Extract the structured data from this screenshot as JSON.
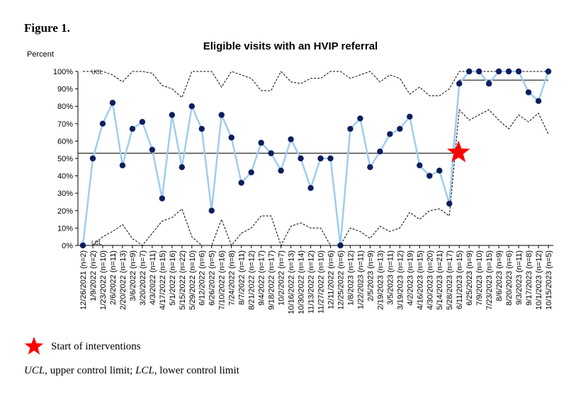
{
  "figure_label": "Figure 1.",
  "legend": {
    "star_label": "Start of interventions"
  },
  "footnote": {
    "ucl_abbr": "UCL,",
    "ucl_text": " upper control limit; ",
    "lcl_abbr": "LCL,",
    "lcl_text": " lower control limit"
  },
  "colors": {
    "line": "#9fcdf2",
    "point": "#0d1e5c",
    "star": "#ff0000",
    "limit": "#000000"
  },
  "chart_data": {
    "type": "line",
    "title": "Eligible visits with an HVIP referral",
    "ylabel": "Percent",
    "ylim": [
      0,
      100
    ],
    "yticks": [
      "0%",
      "10%",
      "20%",
      "30%",
      "40%",
      "50%",
      "60%",
      "70%",
      "80%",
      "90%",
      "100%"
    ],
    "grid": false,
    "categories": [
      "12/26/2021 (n=2)",
      "1/9/2022 (n=2)",
      "1/23/2022 (n=10)",
      "2/6/2022 (n=11)",
      "2/20/2022 (n=13)",
      "3/6/2022 (n=9)",
      "3/20/2022 (n=7)",
      "4/3/2022 (n=11)",
      "4/17/2022 (n=15)",
      "5/1/2022 (n=16)",
      "5/15/2022 (n=22)",
      "5/29/2022 (n=10)",
      "6/12/2022 (n=6)",
      "6/26/2022 (n=5)",
      "7/10/2022 (n=16)",
      "7/24/2022 (n=8)",
      "8/7/2022 (n=11)",
      "8/21/2022 (n=12)",
      "9/4/2022 (n=17)",
      "9/18/2022 (n=17)",
      "10/2/2022 (n=7)",
      "10/16/2022 (n=13)",
      "10/30/2022 (n=14)",
      "11/13/2022 (n=12)",
      "11/27/2022 (n=10)",
      "12/11/2022 (n=6)",
      "12/25/2022 (n=6)",
      "1/8/2023 (n=12)",
      "1/22/2023 (n=11)",
      "2/5/2023 (n=9)",
      "2/19/2023 (n=13)",
      "3/5/2023 (n=11)",
      "3/19/2023 (n=12)",
      "4/2/2023 (n=19)",
      "4/16/2023 (n=15)",
      "4/30/2023 (n=20)",
      "5/14/2023 (n=21)",
      "5/28/2023 (n=17)",
      "6/11/2023 (n=15)",
      "6/25/2023 (n=9)",
      "7/9/2023 (n=10)",
      "7/23/2023 (n=15)",
      "8/6/2023 (n=9)",
      "8/20/2023 (n=6)",
      "9/3/2023 (n=11)",
      "9/17/2023 (n=8)",
      "10/1/2023 (n=12)",
      "10/15/2023 (n=5)"
    ],
    "series": [
      {
        "values": [
          0,
          50,
          70,
          82,
          46,
          67,
          71,
          55,
          27,
          75,
          45,
          80,
          67,
          20,
          75,
          62,
          36,
          42,
          59,
          53,
          43,
          61,
          50,
          33,
          50,
          50,
          0,
          67,
          73,
          45,
          54,
          64,
          67,
          74,
          46,
          40,
          43,
          24,
          93,
          100,
          100,
          93,
          100,
          100,
          100,
          88,
          83,
          100
        ]
      }
    ],
    "center_lines": [
      {
        "from": 0,
        "to": 38,
        "value": 53
      },
      {
        "from": 38,
        "to": 47,
        "value": 95
      }
    ],
    "ucl": [
      100,
      100,
      100,
      98,
      94,
      100,
      100,
      99,
      92,
      90,
      85,
      100,
      100,
      100,
      91,
      100,
      98,
      96,
      89,
      89,
      100,
      94,
      93,
      96,
      96,
      100,
      100,
      96,
      98,
      100,
      94,
      98,
      96,
      87,
      91,
      86,
      86,
      90,
      100,
      100,
      100,
      100,
      100,
      100,
      100,
      100,
      100,
      100
    ],
    "lcl": [
      0,
      0,
      5,
      8,
      12,
      4,
      0,
      7,
      14,
      16,
      21,
      5,
      0,
      0,
      15,
      0,
      7,
      10,
      17,
      17,
      0,
      11,
      13,
      10,
      10,
      0,
      0,
      10,
      8,
      4,
      11,
      8,
      10,
      19,
      15,
      20,
      21,
      17,
      78,
      72,
      75,
      78,
      72,
      67,
      75,
      71,
      76,
      64
    ],
    "ucl_label": "UCL",
    "lcl_label": "LCL",
    "star_index": 38
  }
}
